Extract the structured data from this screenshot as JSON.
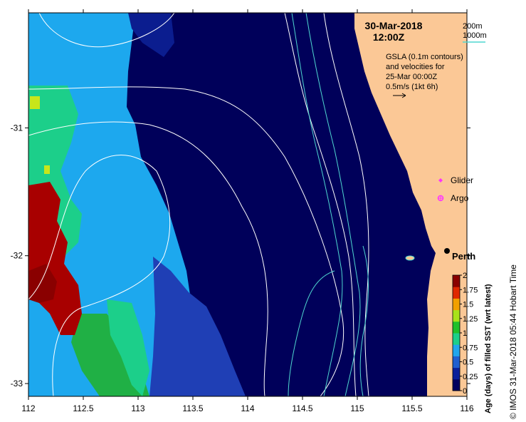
{
  "header": {
    "date": "30-Mar-2018",
    "time": "12:00Z"
  },
  "contours_legend": {
    "labels": [
      "200m",
      "1000m"
    ],
    "colors": [
      "#ffffff",
      "#4fd7d0"
    ]
  },
  "gsla_note": {
    "lines": [
      "GSLA (0.1m contours)",
      "and velocities for",
      "25-Mar 00:00Z",
      "0.5m/s (1kt 6h)"
    ]
  },
  "markers": {
    "glider": {
      "label": "Glider",
      "color": "#ff33ff",
      "icon": "diamond-icon"
    },
    "argo": {
      "label": "Argo",
      "color": "#ff33ff",
      "icon": "circle-star-icon"
    }
  },
  "city": {
    "label": "Perth",
    "lon": 115.86,
    "lat": -31.95
  },
  "axes": {
    "x_ticks": [
      "112",
      "112.5",
      "113",
      "113.5",
      "114",
      "114.5",
      "115",
      "115.5",
      "116"
    ],
    "x_values": [
      112,
      112.5,
      113,
      113.5,
      114,
      114.5,
      115,
      115.5,
      116
    ],
    "y_ticks": [
      "-31",
      "-32",
      "-33"
    ],
    "y_values": [
      -31,
      -32,
      -33
    ],
    "xlim": [
      112,
      116
    ],
    "ylim": [
      -33.1,
      -30.1
    ]
  },
  "colorbar": {
    "label": "Age (days) of filled SST (wrt latest)",
    "ticks": [
      "0",
      "0.25",
      "0.5",
      "0.75",
      "1",
      "1.25",
      "1.5",
      "1.75",
      "2"
    ],
    "values": [
      0,
      0.25,
      0.5,
      0.75,
      1,
      1.25,
      1.5,
      1.75,
      2
    ],
    "colors": [
      "#00005e",
      "#0a1f9a",
      "#1f5fd0",
      "#20a6ec",
      "#1ccf8a",
      "#20c02a",
      "#a8e21a",
      "#f2a000",
      "#e02800",
      "#8a0000"
    ]
  },
  "credit": "© IMOS 31-Mar-2018 05:44 Hobart Time"
}
